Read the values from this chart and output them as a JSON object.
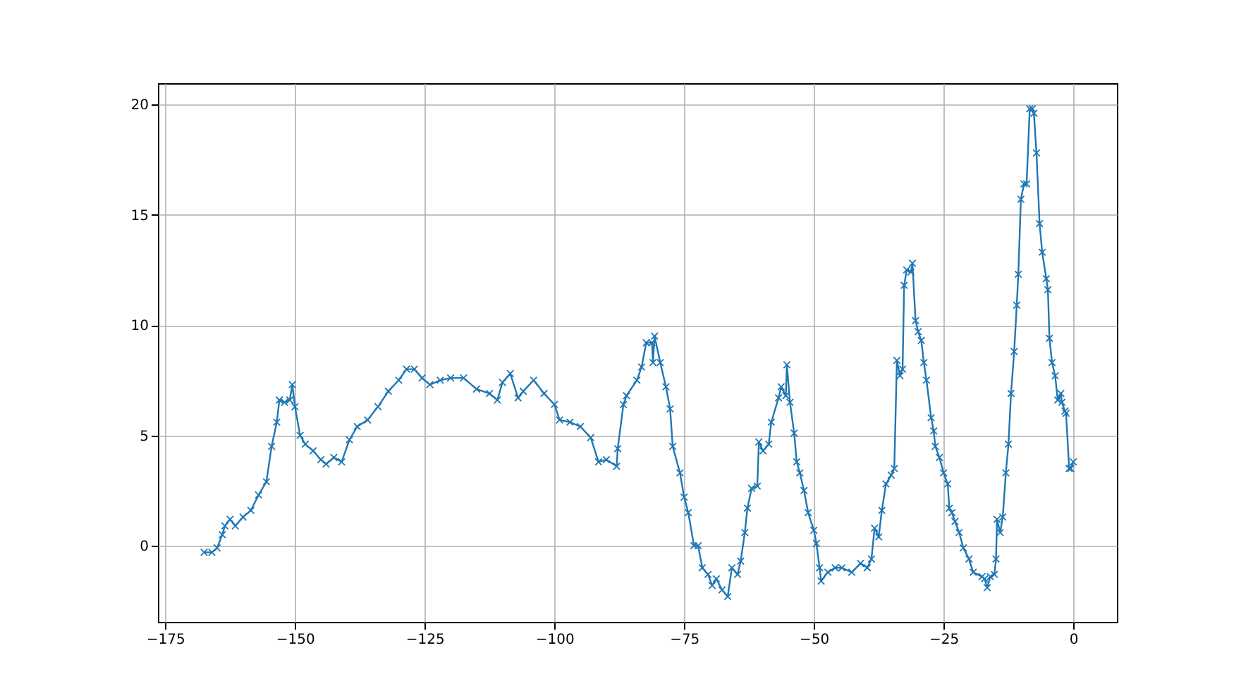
{
  "chart_data": {
    "type": "line",
    "xlim": [
      -176.4,
      8.4
    ],
    "ylim": [
      -3.45,
      20.96
    ],
    "xticks": [
      -175,
      -150,
      -125,
      -100,
      -75,
      -50,
      -25,
      0
    ],
    "yticks": [
      0,
      5,
      10,
      15,
      20
    ],
    "grid": true,
    "marker": "cross",
    "line_style": "solid",
    "series": [
      {
        "color": "#1f77b4",
        "x": [
          -167.5,
          -166,
          -165,
          -164,
          -163.5,
          -162.5,
          -161.5,
          -160,
          -158.5,
          -157,
          -155.5,
          -154.5,
          -153.5,
          -153,
          -152,
          -151,
          -150.5,
          -150,
          -149,
          -148,
          -146.5,
          -145,
          -144,
          -142.5,
          -141,
          -139.5,
          -138,
          -136,
          -134,
          -132,
          -130,
          -128.5,
          -127,
          -125.5,
          -124,
          -122,
          -120,
          -117.5,
          -115,
          -112.5,
          -111,
          -110,
          -108.5,
          -107,
          -106,
          -104,
          -102,
          -100,
          -99,
          -97,
          -95,
          -93,
          -91.5,
          -90,
          -88,
          -87.8,
          -86.7,
          -86.1,
          -84.1,
          -83.2,
          -82.3,
          -81.2,
          -81.0,
          -80.7,
          -79.6,
          -78.5,
          -77.7,
          -77.2,
          -75.8,
          -75.0,
          -74.2,
          -73.1,
          -72.3,
          -71.5,
          -70.4,
          -69.6,
          -68.8,
          -67.7,
          -66.6,
          -65.8,
          -64.7,
          -64.1,
          -63.3,
          -62.8,
          -62.0,
          -60.9,
          -60.6,
          -59.8,
          -58.7,
          -58.2,
          -56.8,
          -56.3,
          -55.4,
          -55.2,
          -54.6,
          -53.8,
          -53.3,
          -52.7,
          -51.9,
          -51.1,
          -50.0,
          -49.5,
          -48.9,
          -48.6,
          -47.3,
          -45.9,
          -44.6,
          -42.7,
          -41.0,
          -39.7,
          -38.9,
          -38.3,
          -37.5,
          -36.9,
          -36.1,
          -35.1,
          -34.5,
          -34.0,
          -33.4,
          -32.9,
          -32.6,
          -32.1,
          -31.3,
          -31.0,
          -30.4,
          -29.9,
          -29.3,
          -28.8,
          -28.3,
          -27.4,
          -26.9,
          -26.6,
          -25.8,
          -25.0,
          -24.2,
          -23.9,
          -23.4,
          -22.8,
          -22.0,
          -21.2,
          -20.1,
          -19.3,
          -17.6,
          -17.1,
          -16.6,
          -16.0,
          -15.2,
          -14.9,
          -14.7,
          -14.1,
          -13.6,
          -13.0,
          -12.5,
          -12.0,
          -11.4,
          -10.9,
          -10.6,
          -10.1,
          -9.5,
          -9.0,
          -8.4,
          -7.9,
          -7.6,
          -7.1,
          -6.5,
          -6.0,
          -5.2,
          -4.9,
          -4.6,
          -4.1,
          -3.5,
          -3.0,
          -2.4,
          -2.2,
          -1.6,
          -1.4,
          -0.8,
          -0.5,
          0
        ],
        "values": [
          -0.3,
          -0.3,
          -0.1,
          0.5,
          0.9,
          1.2,
          0.9,
          1.3,
          1.6,
          2.3,
          2.9,
          4.5,
          5.6,
          6.6,
          6.5,
          6.6,
          7.3,
          6.3,
          5.0,
          4.6,
          4.3,
          3.9,
          3.7,
          4.0,
          3.8,
          4.8,
          5.4,
          5.7,
          6.3,
          7.0,
          7.5,
          8.0,
          8.0,
          7.6,
          7.3,
          7.5,
          7.6,
          7.6,
          7.1,
          6.9,
          6.6,
          7.4,
          7.8,
          6.7,
          7.0,
          7.5,
          6.9,
          6.4,
          5.7,
          5.6,
          5.4,
          4.9,
          3.8,
          3.9,
          3.6,
          4.4,
          6.4,
          6.8,
          7.5,
          8.1,
          9.2,
          9.2,
          8.3,
          9.5,
          8.3,
          7.2,
          6.2,
          4.5,
          3.3,
          2.2,
          1.5,
          0.0,
          0.0,
          -1.0,
          -1.3,
          -1.8,
          -1.5,
          -2.0,
          -2.3,
          -1.0,
          -1.3,
          -0.7,
          0.6,
          1.7,
          2.6,
          2.7,
          4.7,
          4.3,
          4.6,
          5.6,
          6.7,
          7.2,
          6.8,
          8.2,
          6.5,
          5.1,
          3.8,
          3.3,
          2.5,
          1.5,
          0.7,
          0.1,
          -1.0,
          -1.6,
          -1.2,
          -1.0,
          -1.0,
          -1.2,
          -0.8,
          -1.0,
          -0.6,
          0.8,
          0.4,
          1.6,
          2.8,
          3.2,
          3.5,
          8.4,
          7.7,
          8.0,
          11.8,
          12.5,
          12.4,
          12.8,
          10.2,
          9.7,
          9.3,
          8.3,
          7.5,
          5.8,
          5.2,
          4.5,
          4.0,
          3.3,
          2.8,
          1.7,
          1.5,
          1.1,
          0.6,
          -0.1,
          -0.6,
          -1.2,
          -1.4,
          -1.5,
          -1.9,
          -1.4,
          -1.3,
          -0.6,
          1.2,
          0.6,
          1.3,
          3.3,
          4.6,
          6.9,
          8.8,
          10.9,
          12.3,
          15.7,
          16.4,
          16.4,
          19.8,
          19.8,
          19.6,
          17.8,
          14.6,
          13.3,
          12.1,
          11.6,
          9.4,
          8.3,
          7.7,
          6.6,
          6.9,
          6.5,
          6.1,
          6.0,
          3.5,
          3.5,
          3.8
        ]
      }
    ]
  }
}
